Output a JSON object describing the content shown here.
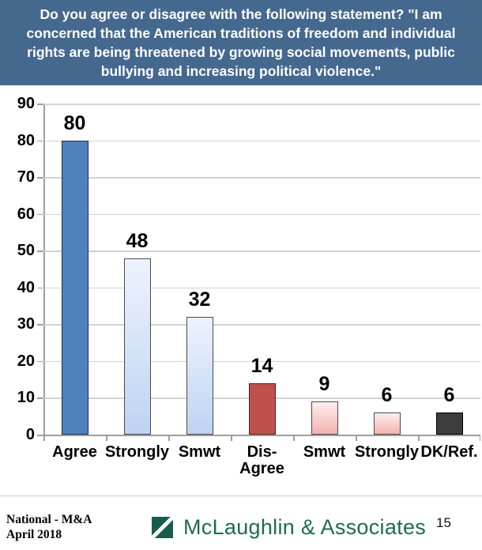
{
  "title": {
    "text": "Do you agree or disagree with the following statement? \"I am concerned that the American traditions of freedom and individual rights are being threatened by growing social movements, public bullying and increasing political violence.\""
  },
  "chart_data": {
    "type": "bar",
    "categories": [
      "Agree",
      "Strongly",
      "Smwt",
      "Dis-Agree",
      "Smwt",
      "Strongly",
      "DK/Ref."
    ],
    "values": [
      80,
      48,
      32,
      14,
      9,
      6,
      6
    ],
    "title": "",
    "xlabel": "",
    "ylabel": "",
    "ylim": [
      0,
      90
    ],
    "yticks": [
      0,
      10,
      20,
      30,
      40,
      50,
      60,
      70,
      80,
      90
    ],
    "grid": true,
    "legend": false,
    "data_labels": true,
    "bar_styles": [
      {
        "fill": "solid",
        "color": "#4f81bd",
        "border": "#1c2f4d"
      },
      {
        "fill": "gradient",
        "from": "#edf3fd",
        "to": "#bed3f2",
        "border": "#4a4a4a"
      },
      {
        "fill": "gradient",
        "from": "#edf3fd",
        "to": "#bed3f2",
        "border": "#4a4a4a"
      },
      {
        "fill": "solid",
        "color": "#c0504d",
        "border": "#4c2523"
      },
      {
        "fill": "gradient",
        "from": "#fdeeee",
        "to": "#f4b2b0",
        "border": "#4a4a4a"
      },
      {
        "fill": "gradient",
        "from": "#fdeeee",
        "to": "#f4b2b0",
        "border": "#4a4a4a"
      },
      {
        "fill": "solid",
        "color": "#3d3d3d",
        "border": "#000000"
      }
    ]
  },
  "footer": {
    "source_line1": "National - M&A",
    "source_line2": "April 2018",
    "brand": "McLaughlin & Associates",
    "page_number": "15",
    "logo_icon": "green-square-diagonal-slash"
  },
  "colors": {
    "banner_bg": "#45688f",
    "banner_text": "#ffffff",
    "gridline": "#d2d2d2",
    "axis": "#9e9e9e",
    "brand_green": "#1d6a53",
    "logo_green": "#175d4b"
  }
}
